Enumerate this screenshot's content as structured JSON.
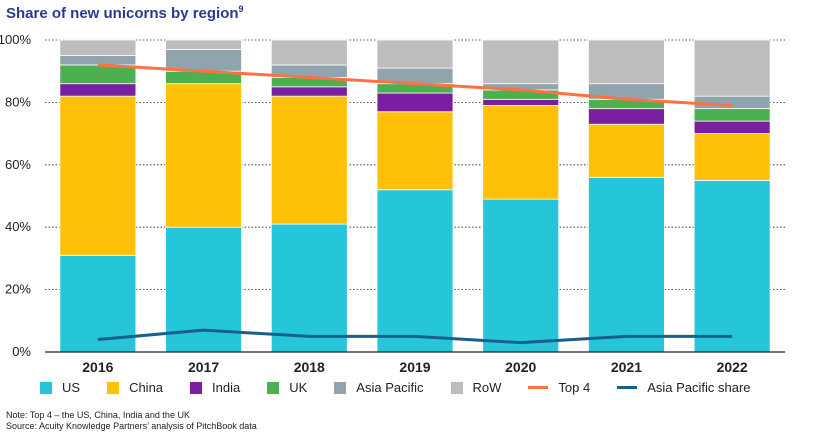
{
  "title": "Share of new unicorns by region",
  "title_footnote": "9",
  "chart_data": {
    "type": "bar",
    "stacked": true,
    "categories": [
      "2016",
      "2017",
      "2018",
      "2019",
      "2020",
      "2021",
      "2022"
    ],
    "yticks": [
      "0%",
      "20%",
      "40%",
      "60%",
      "80%",
      "100%"
    ],
    "ylim": [
      0,
      100
    ],
    "series": [
      {
        "name": "US",
        "color": "#26c6da",
        "values": [
          31,
          40,
          41,
          52,
          49,
          56,
          55
        ]
      },
      {
        "name": "China",
        "color": "#ffc107",
        "values": [
          51,
          46,
          41,
          25,
          30,
          17,
          15
        ]
      },
      {
        "name": "India",
        "color": "#7b1fa2",
        "values": [
          4,
          0,
          3,
          6,
          2,
          5,
          4
        ]
      },
      {
        "name": "UK",
        "color": "#4caf50",
        "values": [
          6,
          4,
          3,
          3,
          3,
          3,
          4
        ]
      },
      {
        "name": "Asia Pacific",
        "color": "#90a4ae",
        "values": [
          3,
          7,
          4,
          5,
          2,
          5,
          4
        ]
      },
      {
        "name": "RoW",
        "color": "#bdbdbd",
        "values": [
          5,
          3,
          8,
          9,
          14,
          14,
          18
        ]
      }
    ],
    "lines": [
      {
        "name": "Top 4",
        "color": "#ff7043",
        "values": [
          92,
          90,
          88,
          86,
          84,
          81,
          79
        ]
      },
      {
        "name": "Asia Pacific share",
        "color": "#1a5e8e",
        "values": [
          4,
          7,
          5,
          5,
          3,
          5,
          5
        ]
      }
    ]
  },
  "legend": [
    {
      "label": "US",
      "kind": "box",
      "color": "#26c6da"
    },
    {
      "label": "China",
      "kind": "box",
      "color": "#ffc107"
    },
    {
      "label": "India",
      "kind": "box",
      "color": "#7b1fa2"
    },
    {
      "label": "UK",
      "kind": "box",
      "color": "#4caf50"
    },
    {
      "label": "Asia Pacific",
      "kind": "box",
      "color": "#90a4ae"
    },
    {
      "label": "RoW",
      "kind": "box",
      "color": "#bdbdbd"
    },
    {
      "label": "Top 4",
      "kind": "line",
      "color": "#ff7043"
    },
    {
      "label": "Asia Pacific share",
      "kind": "line",
      "color": "#1a5e8e"
    }
  ],
  "notes": {
    "line1": "Note: Top 4 – the US, China, India and the UK",
    "line2": "Source: Acuity Knowledge Partners’ analysis of PitchBook data"
  }
}
